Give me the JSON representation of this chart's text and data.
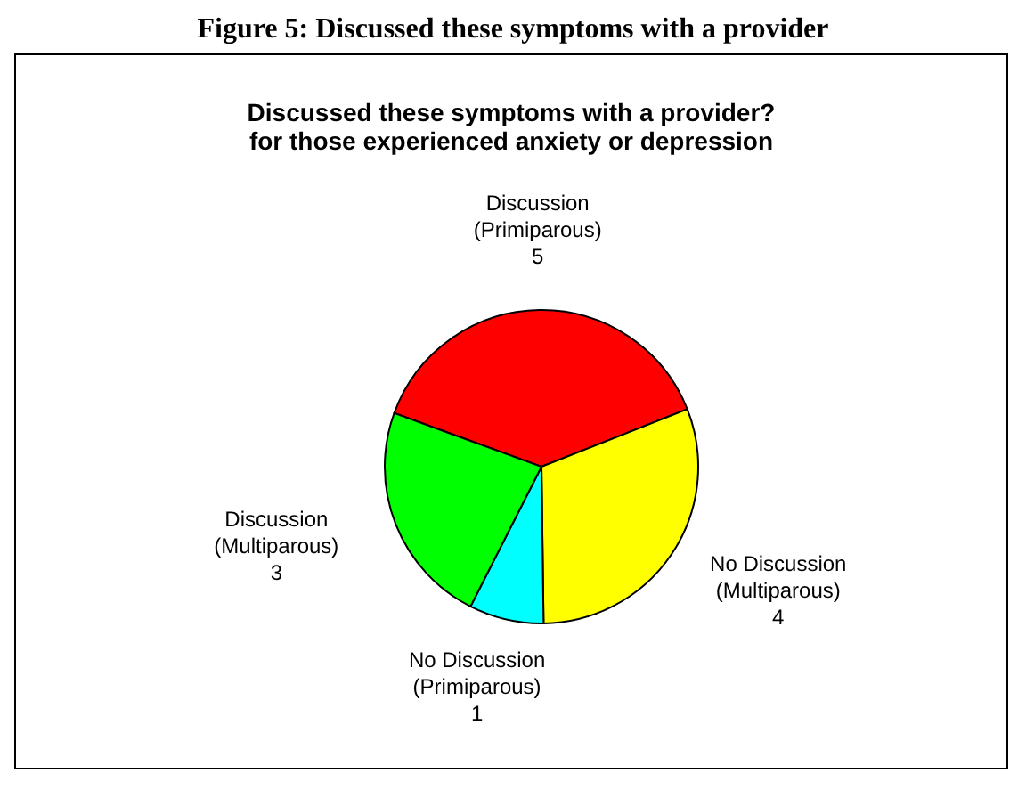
{
  "chart_data": {
    "type": "pie",
    "title": "Discussed these symptoms with a provider?\nfor those experienced anxiety or depression",
    "annotations": [
      "Figure 5: Discussed these symptoms with a provider"
    ],
    "categories": [
      "Discussion (Primiparous)",
      "No Discussion (Multiparous)",
      "No Discussion (Primiparous)",
      "Discussion (Multiparous)"
    ],
    "values": [
      5,
      4,
      1,
      3
    ],
    "colors": [
      "#ff0000",
      "#ffff00",
      "#00ffff",
      "#00ff00"
    ],
    "data_labels": true,
    "legend": false
  }
}
